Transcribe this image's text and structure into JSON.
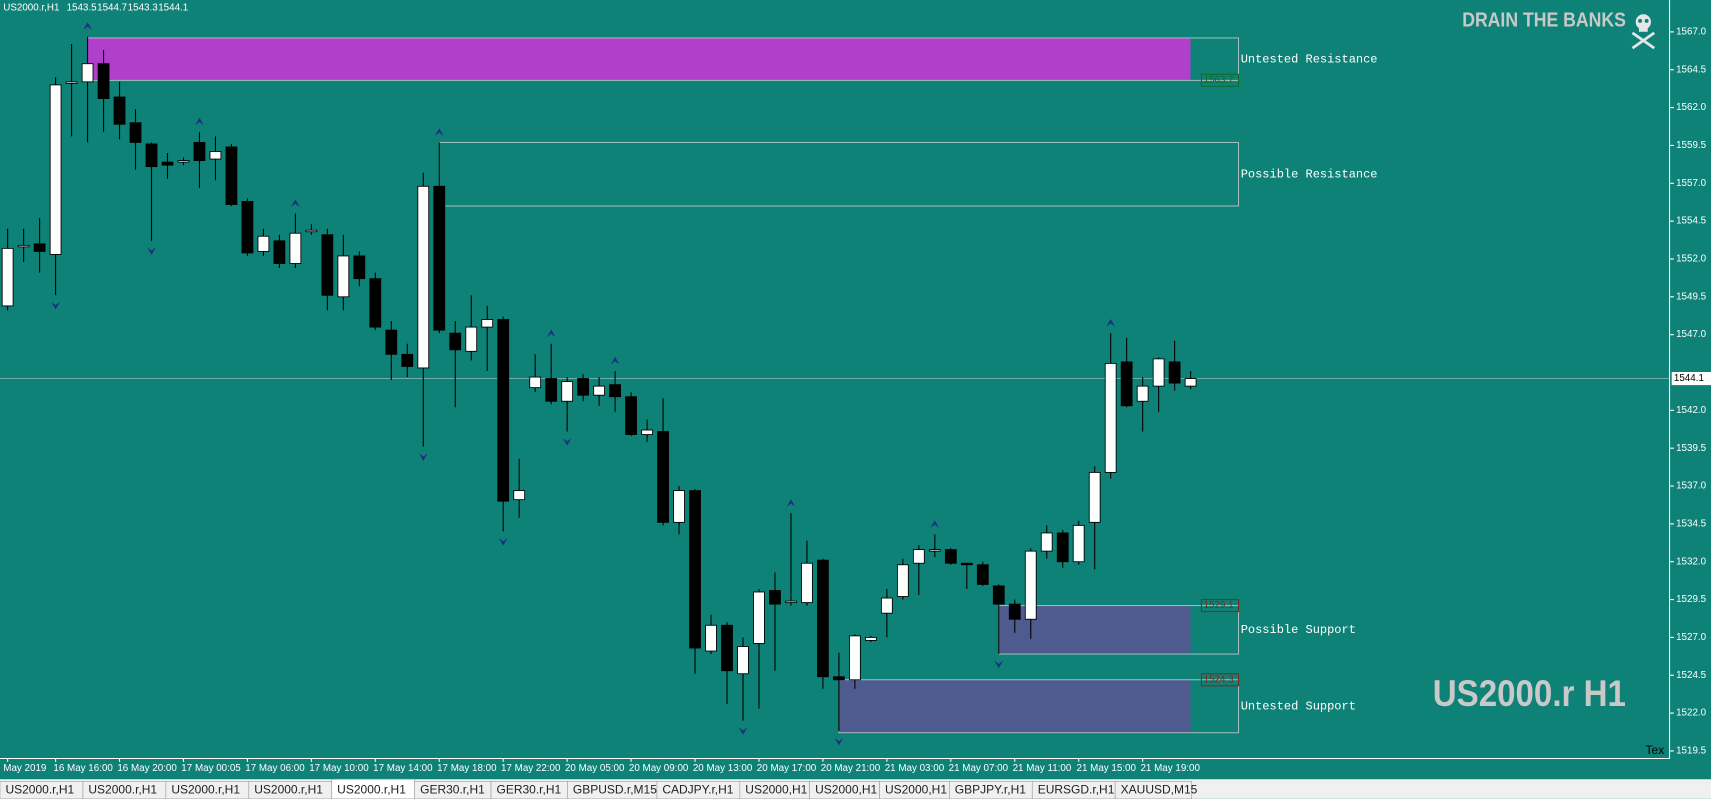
{
  "header": {
    "symbol": "US2000.r,H1",
    "open": 1543.5,
    "high": 1544.7,
    "low": 1543.3,
    "close": 1544.1
  },
  "watermark": {
    "brand": "DRAIN THE BANKS",
    "symbol_period": "US2000.r H1",
    "corner_text": "Tex"
  },
  "tabs": {
    "items": [
      "US2000.r,H1",
      "US2000.r,H1",
      "US2000.r,H1",
      "US2000.r,H1",
      "US2000.r,H1",
      "GER30.r,H1",
      "GER30.r,H1",
      "GBPUSD.r,M15",
      "CADJPY.r,H1",
      "US2000,H1",
      "US2000,H1",
      "US2000,H1",
      "GBPJPY.r,H1",
      "EURSGD.r,H1",
      "XAUUSD,M15"
    ],
    "active": 4
  },
  "chart_data": {
    "type": "candlestick",
    "up_color": "#ffffff",
    "down_color": "#000000",
    "background": "#0f8278",
    "categories": [
      "May 2019",
      null,
      null,
      "16 May 16:00",
      null,
      null,
      null,
      "16 May 20:00",
      null,
      null,
      null,
      "17 May 00:05",
      null,
      null,
      null,
      "17 May 06:00",
      null,
      null,
      null,
      "17 May 10:00",
      null,
      null,
      null,
      "17 May 14:00",
      null,
      null,
      null,
      "17 May 18:00",
      null,
      null,
      null,
      "17 May 22:00",
      null,
      null,
      null,
      "20 May 05:00",
      null,
      null,
      null,
      "20 May 09:00",
      null,
      null,
      null,
      "20 May 13:00",
      null,
      null,
      null,
      "20 May 17:00",
      null,
      null,
      null,
      "20 May 21:00",
      null,
      null,
      null,
      "21 May 03:00",
      null,
      null,
      null,
      "21 May 07:00",
      null,
      null,
      null,
      "21 May 11:00",
      null,
      null,
      null,
      "21 May 15:00",
      null,
      null,
      null,
      "21 May 19:00",
      null,
      null,
      null
    ],
    "open": [
      1548.9,
      1552.8,
      1553.0,
      1552.3,
      1563.6,
      1563.7,
      1564.9,
      1562.7,
      1561.0,
      1559.6,
      1558.4,
      1558.4,
      1559.7,
      1558.6,
      1559.4,
      1555.8,
      1552.5,
      1553.2,
      1551.7,
      1553.8,
      1553.6,
      1549.5,
      1552.2,
      1550.7,
      1547.3,
      1545.7,
      1544.8,
      1556.8,
      1547.1,
      1545.9,
      1547.5,
      1548.0,
      1536.1,
      1543.5,
      1544.1,
      1542.6,
      1544.1,
      1543.0,
      1543.7,
      1542.9,
      1540.4,
      1540.6,
      1534.6,
      1536.7,
      1526.1,
      1527.8,
      1524.6,
      1526.6,
      1530.1,
      1529.3,
      1529.3,
      1532.1,
      1524.4,
      1524.2,
      1526.8,
      1528.6,
      1529.7,
      1531.9,
      1532.7,
      1532.8,
      1531.9,
      1531.8,
      1530.4,
      1529.2,
      1528.2,
      1532.7,
      1533.9,
      1532.0,
      1534.6,
      1537.9,
      1545.2,
      1542.6,
      1543.6,
      1545.2,
      1543.6
    ],
    "high": [
      1554.0,
      1554.0,
      1554.7,
      1564.0,
      1566.2,
      1566.7,
      1565.8,
      1563.7,
      1561.9,
      1559.7,
      1559.0,
      1558.7,
      1560.4,
      1560.1,
      1559.6,
      1556.0,
      1554.0,
      1553.6,
      1555.0,
      1554.3,
      1554.0,
      1553.6,
      1552.5,
      1551.1,
      1547.9,
      1546.4,
      1557.7,
      1559.7,
      1547.9,
      1549.6,
      1548.9,
      1548.2,
      1538.8,
      1545.7,
      1546.4,
      1544.2,
      1544.4,
      1544.2,
      1544.6,
      1543.2,
      1541.4,
      1542.8,
      1537.0,
      1536.8,
      1528.5,
      1528.0,
      1527.0,
      1530.2,
      1531.3,
      1535.2,
      1533.4,
      1532.2,
      1526.0,
      1527.2,
      1527.1,
      1530.2,
      1532.2,
      1533.1,
      1533.8,
      1532.9,
      1531.9,
      1532.0,
      1530.5,
      1529.5,
      1532.9,
      1534.4,
      1534.1,
      1534.7,
      1538.3,
      1547.1,
      1546.8,
      1544.2,
      1545.5,
      1546.6,
      1544.6
    ],
    "low": [
      1548.6,
      1551.8,
      1551.1,
      1549.6,
      1560.1,
      1559.7,
      1560.4,
      1559.9,
      1557.9,
      1553.2,
      1557.3,
      1558.2,
      1556.7,
      1557.2,
      1555.5,
      1552.2,
      1552.2,
      1551.4,
      1551.4,
      1553.6,
      1548.6,
      1548.6,
      1550.2,
      1547.3,
      1544.0,
      1544.2,
      1539.6,
      1547.1,
      1542.2,
      1545.3,
      1544.6,
      1534.0,
      1534.9,
      1543.2,
      1542.4,
      1540.6,
      1542.6,
      1542.3,
      1541.9,
      1540.3,
      1539.9,
      1534.4,
      1533.8,
      1524.6,
      1525.9,
      1522.6,
      1521.5,
      1522.3,
      1524.8,
      1529.1,
      1529.1,
      1523.6,
      1520.8,
      1523.6,
      1526.7,
      1527.0,
      1529.5,
      1529.8,
      1532.3,
      1531.8,
      1530.2,
      1530.4,
      1525.9,
      1527.3,
      1526.9,
      1532.2,
      1531.6,
      1531.8,
      1531.5,
      1537.5,
      1542.2,
      1540.6,
      1541.9,
      1543.3,
      1543.4
    ],
    "close": [
      1552.7,
      1552.9,
      1552.5,
      1563.5,
      1563.7,
      1564.9,
      1562.6,
      1560.9,
      1559.7,
      1558.1,
      1558.2,
      1558.5,
      1558.5,
      1559.1,
      1555.6,
      1552.4,
      1553.5,
      1551.7,
      1553.7,
      1553.9,
      1549.6,
      1552.2,
      1550.7,
      1547.5,
      1545.7,
      1544.9,
      1556.8,
      1547.3,
      1546.0,
      1547.5,
      1548.0,
      1536.0,
      1536.7,
      1544.2,
      1542.6,
      1543.9,
      1543.0,
      1543.6,
      1542.9,
      1540.4,
      1540.7,
      1534.6,
      1536.7,
      1526.3,
      1527.8,
      1524.8,
      1526.4,
      1530.0,
      1529.2,
      1529.4,
      1531.9,
      1524.4,
      1524.2,
      1527.1,
      1527.0,
      1529.6,
      1531.8,
      1532.8,
      1532.8,
      1531.9,
      1531.8,
      1530.5,
      1529.2,
      1528.2,
      1532.7,
      1533.9,
      1532.0,
      1534.4,
      1537.9,
      1545.1,
      1542.3,
      1543.6,
      1545.4,
      1543.8,
      1544.1
    ],
    "ylim": [
      1519.0,
      1569.1
    ],
    "yticks": [
      {
        "value": 1567,
        "label": "1567.0"
      },
      1564.5,
      {
        "value": 1562,
        "label": "1562.0"
      },
      1559.5,
      {
        "value": 1557,
        "label": "1557.0"
      },
      1554.5,
      {
        "value": 1552,
        "label": "1552.0"
      },
      1549.5,
      {
        "value": 1547,
        "label": "1547.0"
      },
      {
        "value": 1542,
        "label": "1542.0"
      },
      1539.5,
      {
        "value": 1537,
        "label": "1537.0"
      },
      1534.5,
      {
        "value": 1532,
        "label": "1532.0"
      },
      1529.5,
      {
        "value": 1527,
        "label": "1527.0"
      },
      1524.5,
      {
        "value": 1522,
        "label": "1522.0"
      },
      1519.5
    ],
    "current_price": 1544.1,
    "fractals_up": [
      5,
      12,
      18,
      27,
      34,
      38,
      49,
      58,
      69
    ],
    "fractals_down": [
      3,
      9,
      26,
      31,
      35,
      46,
      52,
      62
    ],
    "zones": [
      {
        "label": "Untested Resistance",
        "top": 1566.6,
        "bottom": 1563.8,
        "start": 5,
        "color": "#b03fcc",
        "price_label": 1563.7,
        "price_label_at": "bottom",
        "price_label_color": "#0d6b2c"
      },
      {
        "label": "Possible Resistance",
        "top": 1559.7,
        "bottom": 1555.5,
        "start": 27,
        "color": null
      },
      {
        "label": "Possible Support",
        "top": 1529.1,
        "bottom": 1525.9,
        "start": 62,
        "color": "#4f5a8f",
        "price_label": 1529.1,
        "price_label_at": "top",
        "price_label_color": "#7a2c1c"
      },
      {
        "label": "Untested Support",
        "top": 1524.2,
        "bottom": 1520.7,
        "start": 52,
        "color": "#4f5a8f",
        "price_label": 1524.3,
        "price_label_at": "top",
        "price_label_color": "#7a2c1c"
      }
    ]
  }
}
